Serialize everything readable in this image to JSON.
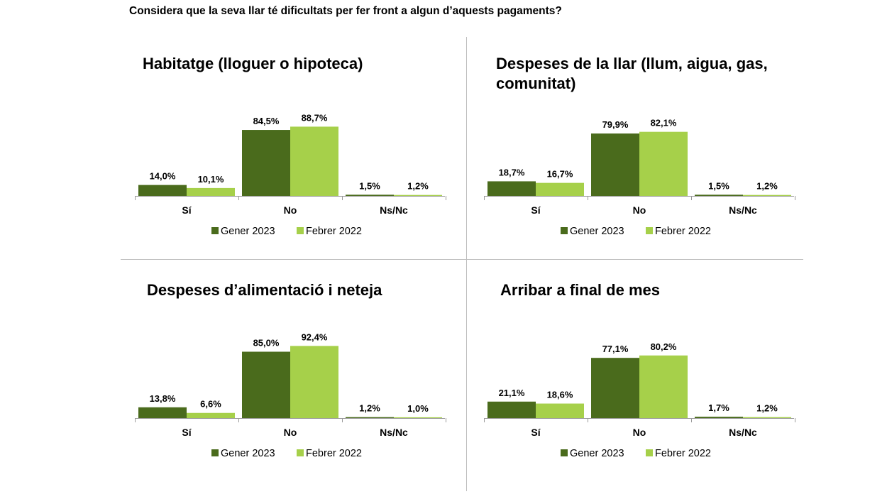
{
  "page_title": "Considera que la seva llar té dificultats per fer front a algun d’aquests pagaments?",
  "colors": {
    "series_0": "#4a6b1c",
    "series_1": "#a6d04a",
    "title": "#3f7d1e",
    "axis": "#9a9a9a",
    "divider": "#bdbdbd"
  },
  "chart_data": [
    {
      "type": "bar",
      "title": "Habitatge (lloguer o hipoteca)",
      "categories": [
        "Sí",
        "No",
        "Ns/Nc"
      ],
      "series": [
        {
          "name": "Gener 2023",
          "values": [
            14.0,
            84.5,
            1.5
          ],
          "labels": [
            "14,0%",
            "84,5%",
            "1,5%"
          ]
        },
        {
          "name": "Febrer 2022",
          "values": [
            10.1,
            88.7,
            1.2
          ],
          "labels": [
            "10,1%",
            "88,7%",
            "1,2%"
          ]
        }
      ],
      "ylim": [
        0,
        100
      ],
      "grid": false,
      "legend": "bottom"
    },
    {
      "type": "bar",
      "title": "Despeses de la llar (llum, aigua, gas, comunitat)",
      "title_lines": [
        "Despeses de la llar (llum, aigua, gas,",
        "comunitat)"
      ],
      "categories": [
        "Sí",
        "No",
        "Ns/Nc"
      ],
      "series": [
        {
          "name": "Gener 2023",
          "values": [
            18.7,
            79.9,
            1.5
          ],
          "labels": [
            "18,7%",
            "79,9%",
            "1,5%"
          ]
        },
        {
          "name": "Febrer 2022",
          "values": [
            16.7,
            82.1,
            1.2
          ],
          "labels": [
            "16,7%",
            "82,1%",
            "1,2%"
          ]
        }
      ],
      "ylim": [
        0,
        100
      ],
      "grid": false,
      "legend": "bottom"
    },
    {
      "type": "bar",
      "title": "Despeses d’alimentació i neteja",
      "categories": [
        "Sí",
        "No",
        "Ns/Nc"
      ],
      "series": [
        {
          "name": "Gener 2023",
          "values": [
            13.8,
            85.0,
            1.2
          ],
          "labels": [
            "13,8%",
            "85,0%",
            "1,2%"
          ]
        },
        {
          "name": "Febrer 2022",
          "values": [
            6.6,
            92.4,
            1.0
          ],
          "labels": [
            "6,6%",
            "92,4%",
            "1,0%"
          ]
        }
      ],
      "ylim": [
        0,
        100
      ],
      "grid": false,
      "legend": "bottom"
    },
    {
      "type": "bar",
      "title": "Arribar a final de mes",
      "categories": [
        "Sí",
        "No",
        "Ns/Nc"
      ],
      "series": [
        {
          "name": "Gener 2023",
          "values": [
            21.1,
            77.1,
            1.7
          ],
          "labels": [
            "21,1%",
            "77,1%",
            "1,7%"
          ]
        },
        {
          "name": "Febrer 2022",
          "values": [
            18.6,
            80.2,
            1.2
          ],
          "labels": [
            "18,6%",
            "80,2%",
            "1,2%"
          ]
        }
      ],
      "ylim": [
        0,
        100
      ],
      "grid": false,
      "legend": "bottom"
    }
  ]
}
